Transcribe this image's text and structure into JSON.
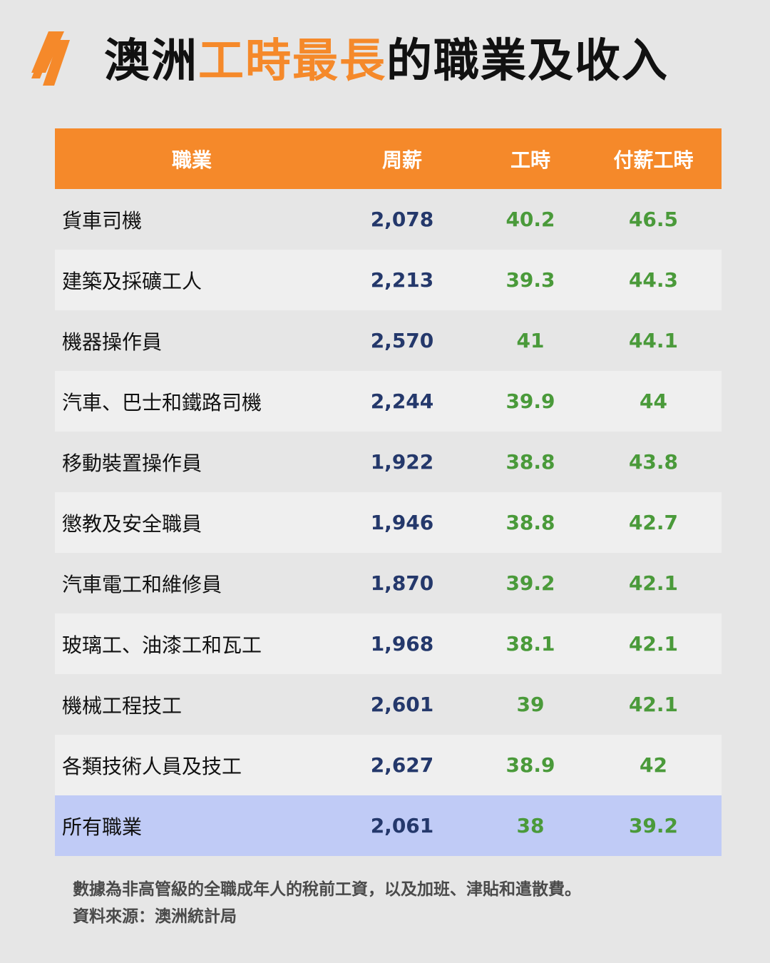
{
  "title": {
    "prefix": "澳洲",
    "highlight": "工時最長",
    "suffix": "的職業及收入"
  },
  "colors": {
    "accent": "#f5892a",
    "pay": "#24386b",
    "hours": "#4a9a3a",
    "total_row": "#c0cbf6",
    "background": "#e6e6e6"
  },
  "logo": {
    "icon": "sbs-logo-icon"
  },
  "table": {
    "headers": {
      "occupation": "職業",
      "weekly_pay": "周薪",
      "hours": "工時",
      "paid_hours": "付薪工時"
    },
    "rows": [
      {
        "occupation": "貨車司機",
        "weekly_pay": "2,078",
        "hours": "40.2",
        "paid_hours": "46.5"
      },
      {
        "occupation": "建築及採礦工人",
        "weekly_pay": "2,213",
        "hours": "39.3",
        "paid_hours": "44.3"
      },
      {
        "occupation": "機器操作員",
        "weekly_pay": "2,570",
        "hours": "41",
        "paid_hours": "44.1"
      },
      {
        "occupation": "汽車、巴士和鐵路司機",
        "weekly_pay": "2,244",
        "hours": "39.9",
        "paid_hours": "44"
      },
      {
        "occupation": "移動裝置操作員",
        "weekly_pay": "1,922",
        "hours": "38.8",
        "paid_hours": "43.8"
      },
      {
        "occupation": "懲教及安全職員",
        "weekly_pay": "1,946",
        "hours": "38.8",
        "paid_hours": "42.7"
      },
      {
        "occupation": "汽車電工和維修員",
        "weekly_pay": "1,870",
        "hours": "39.2",
        "paid_hours": "42.1"
      },
      {
        "occupation": "玻璃工、油漆工和瓦工",
        "weekly_pay": "1,968",
        "hours": "38.1",
        "paid_hours": "42.1"
      },
      {
        "occupation": "機械工程技工",
        "weekly_pay": "2,601",
        "hours": "39",
        "paid_hours": "42.1"
      },
      {
        "occupation": "各類技術人員及技工",
        "weekly_pay": "2,627",
        "hours": "38.9",
        "paid_hours": "42"
      },
      {
        "occupation": "所有職業",
        "weekly_pay": "2,061",
        "hours": "38",
        "paid_hours": "39.2"
      }
    ]
  },
  "footnote": {
    "line1": "數據為非高管級的全職成年人的稅前工資，以及加班、津貼和遣散費。",
    "line2": "資料來源：澳洲統計局"
  },
  "chart_data": {
    "type": "table",
    "title": "澳洲工時最長的職業及收入",
    "columns": [
      "職業",
      "周薪",
      "工時",
      "付薪工時"
    ],
    "rows": [
      [
        "貨車司機",
        2078,
        40.2,
        46.5
      ],
      [
        "建築及採礦工人",
        2213,
        39.3,
        44.3
      ],
      [
        "機器操作員",
        2570,
        41,
        44.1
      ],
      [
        "汽車、巴士和鐵路司機",
        2244,
        39.9,
        44
      ],
      [
        "移動裝置操作員",
        1922,
        38.8,
        43.8
      ],
      [
        "懲教及安全職員",
        1946,
        38.8,
        42.7
      ],
      [
        "汽車電工和維修員",
        1870,
        39.2,
        42.1
      ],
      [
        "玻璃工、油漆工和瓦工",
        1968,
        38.1,
        42.1
      ],
      [
        "機械工程技工",
        2601,
        39,
        42.1
      ],
      [
        "各類技術人員及技工",
        2627,
        38.9,
        42
      ],
      [
        "所有職業",
        2061,
        38,
        39.2
      ]
    ]
  }
}
